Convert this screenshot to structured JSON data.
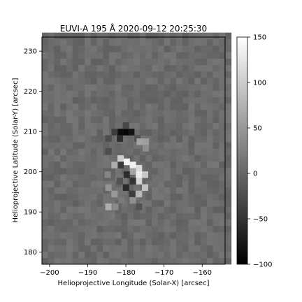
{
  "chart_data": {
    "type": "heatmap",
    "title": "EUVI-A 195 Å 2020-09-12 20:25:30",
    "xlabel": "Helioprojective Longitude (Solar-X) [arcsec]",
    "ylabel": "Helioprojective Latitude (Solar-Y) [arcsec]",
    "xlim": [
      -202,
      -154
    ],
    "ylim": [
      177,
      233.5
    ],
    "xticks": [
      -200,
      -190,
      -180,
      -170,
      -160
    ],
    "xtick_labels": [
      "−200",
      "−190",
      "−180",
      "−170",
      "−160"
    ],
    "yticks": [
      180,
      190,
      200,
      210,
      220,
      230
    ],
    "ytick_labels": [
      "180",
      "190",
      "200",
      "210",
      "220",
      "230"
    ],
    "colormap": "gray",
    "colorbar": {
      "min": -100,
      "max": 150,
      "ticks": [
        -100,
        -50,
        0,
        50,
        100,
        150
      ],
      "tick_labels": [
        "−100",
        "−50",
        "0",
        "50",
        "100",
        "150"
      ]
    },
    "background_value": 5,
    "pixel_size_arcsec": 1.6,
    "features": [
      {
        "x": -180.0,
        "y": 209.9,
        "value": -95
      },
      {
        "x": -181.4,
        "y": 209.9,
        "value": -88
      },
      {
        "x": -178.6,
        "y": 209.9,
        "value": -80
      },
      {
        "x": -180.0,
        "y": 211.5,
        "value": -30
      },
      {
        "x": -181.6,
        "y": 208.3,
        "value": -55
      },
      {
        "x": -183.0,
        "y": 209.9,
        "value": -40
      },
      {
        "x": -177.0,
        "y": 208.3,
        "value": -20
      },
      {
        "x": -184.6,
        "y": 208.3,
        "value": -25
      },
      {
        "x": -176.4,
        "y": 207.5,
        "value": 60
      },
      {
        "x": -174.8,
        "y": 207.5,
        "value": 55
      },
      {
        "x": -174.8,
        "y": 205.9,
        "value": 40
      },
      {
        "x": -181.4,
        "y": 203.3,
        "value": 100
      },
      {
        "x": -179.8,
        "y": 202.5,
        "value": 140
      },
      {
        "x": -178.2,
        "y": 201.7,
        "value": 135
      },
      {
        "x": -176.6,
        "y": 200.9,
        "value": 115
      },
      {
        "x": -176.6,
        "y": 199.3,
        "value": 130
      },
      {
        "x": -175.0,
        "y": 199.3,
        "value": 95
      },
      {
        "x": -176.6,
        "y": 197.7,
        "value": 110
      },
      {
        "x": -175.0,
        "y": 196.1,
        "value": 90
      },
      {
        "x": -176.6,
        "y": 194.5,
        "value": 80
      },
      {
        "x": -178.2,
        "y": 200.1,
        "value": 60
      },
      {
        "x": -181.4,
        "y": 201.7,
        "value": -45
      },
      {
        "x": -179.8,
        "y": 199.3,
        "value": -55
      },
      {
        "x": -178.2,
        "y": 197.7,
        "value": -50
      },
      {
        "x": -180.0,
        "y": 196.1,
        "value": -60
      },
      {
        "x": -178.4,
        "y": 194.5,
        "value": -40
      },
      {
        "x": -181.6,
        "y": 197.7,
        "value": -20
      },
      {
        "x": -184.8,
        "y": 199.3,
        "value": 30
      },
      {
        "x": -183.0,
        "y": 201.7,
        "value": 70
      },
      {
        "x": -184.6,
        "y": 196.1,
        "value": 45
      },
      {
        "x": -183.0,
        "y": 194.5,
        "value": 50
      },
      {
        "x": -184.6,
        "y": 191.3,
        "value": 70
      },
      {
        "x": -182.8,
        "y": 191.3,
        "value": 35
      },
      {
        "x": -181.2,
        "y": 193.0,
        "value": 20
      },
      {
        "x": -184.6,
        "y": 205.1,
        "value": -25
      },
      {
        "x": -176.6,
        "y": 191.3,
        "value": -20
      },
      {
        "x": -178.2,
        "y": 192.9,
        "value": 40
      }
    ]
  }
}
